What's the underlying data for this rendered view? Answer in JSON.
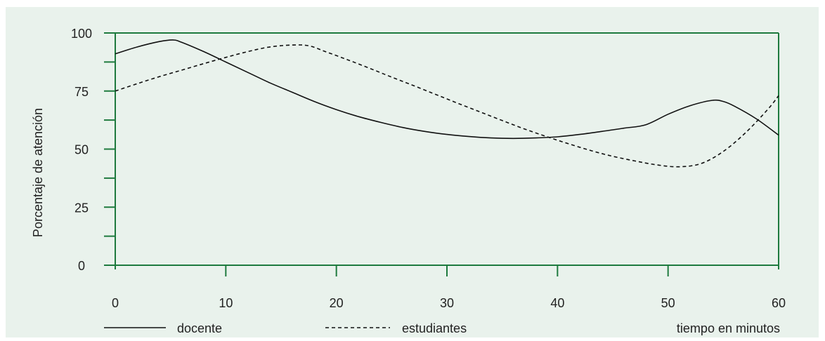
{
  "chart_data": {
    "type": "line",
    "title": "",
    "xlabel": "tiempo en minutos",
    "ylabel": "Porcentaje de atención",
    "xlim": [
      0,
      60
    ],
    "ylim": [
      0,
      100
    ],
    "x_ticks": [
      0,
      10,
      20,
      30,
      40,
      50,
      60
    ],
    "x_tick_labels": [
      "0",
      "10",
      "20",
      "30",
      "40",
      "50",
      "60"
    ],
    "y_ticks": [
      0,
      12.5,
      25,
      37.5,
      50,
      62.5,
      75,
      87.5,
      100
    ],
    "y_tick_labels": [
      "0",
      "25",
      "50",
      "75",
      "100"
    ],
    "y_labeled_ticks": [
      0,
      25,
      50,
      75,
      100
    ],
    "grid": false,
    "legend_position": "bottom",
    "series": [
      {
        "name": "docente",
        "line_style": "solid",
        "x": [
          0,
          2,
          4,
          5.2,
          6,
          8,
          10,
          12,
          14,
          16,
          18,
          20,
          22,
          24,
          26,
          28,
          30,
          32,
          34,
          36,
          38,
          40,
          42,
          44,
          46,
          48,
          50,
          52,
          54,
          55,
          56,
          58,
          60
        ],
        "y": [
          91,
          94,
          96.3,
          97,
          96,
          92,
          87.5,
          83,
          78.5,
          74.5,
          70.5,
          67,
          64,
          61.5,
          59.3,
          57.6,
          56.3,
          55.4,
          54.8,
          54.6,
          54.8,
          55.3,
          56.3,
          57.6,
          59,
          60.5,
          65,
          68.7,
          71,
          70.5,
          68.5,
          63,
          56
        ]
      },
      {
        "name": "estudiantes",
        "line_style": "dashed",
        "x": [
          0,
          2,
          4,
          6,
          8,
          10,
          12,
          14,
          16,
          17.5,
          19,
          21,
          23,
          25,
          27,
          29,
          31,
          33,
          35,
          37,
          39,
          41,
          43,
          45,
          47,
          49,
          51,
          53,
          55,
          57,
          59,
          60
        ],
        "y": [
          75,
          78.2,
          81.2,
          84,
          86.8,
          89.5,
          92,
          94,
          94.8,
          94.5,
          92,
          88.5,
          84.8,
          81,
          77.3,
          73.5,
          69.7,
          66,
          62.3,
          58.7,
          55.4,
          52.3,
          49.4,
          46.9,
          44.9,
          43.2,
          42.4,
          43.8,
          49,
          57,
          67,
          73
        ]
      }
    ]
  },
  "colors": {
    "background": "#e9f2ec",
    "axis": "#1e7a3e",
    "line": "#111111",
    "text": "#222222"
  }
}
